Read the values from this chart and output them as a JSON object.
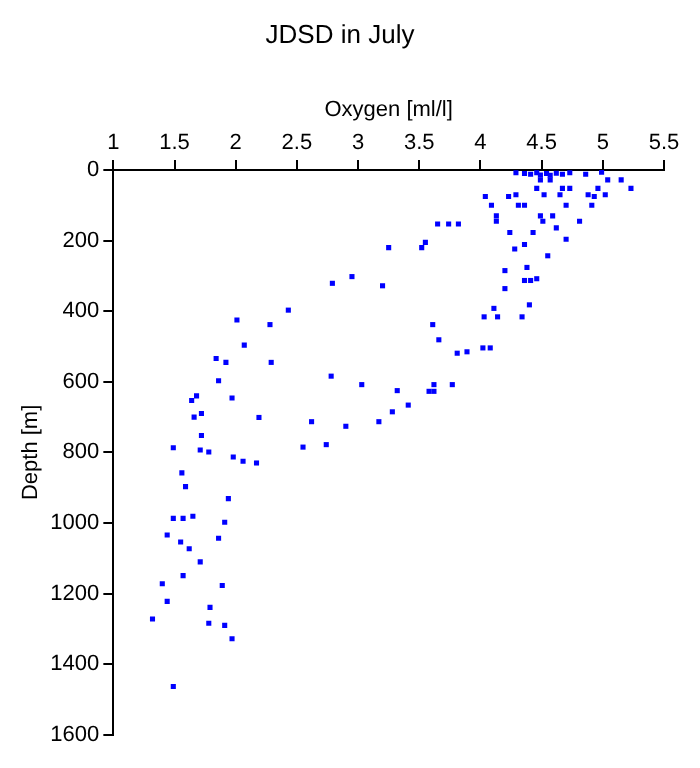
{
  "chart_data": {
    "type": "scatter",
    "title": "JDSD in July",
    "xlabel": "Oxygen [ml/l]",
    "ylabel": "Depth [m]",
    "xlim": [
      1,
      5.5
    ],
    "xticks": [
      1,
      1.5,
      2,
      2.5,
      3,
      3.5,
      4,
      4.5,
      5,
      5.5
    ],
    "ylim": [
      1600,
      0
    ],
    "yticks": [
      0,
      200,
      400,
      600,
      800,
      1000,
      1200,
      1400,
      1600
    ],
    "grid": false,
    "legend": false,
    "marker": "square",
    "series": [
      {
        "color": "#0000ff",
        "x": [
          4.29,
          4.36,
          4.41,
          4.46,
          4.49,
          4.54,
          4.57,
          4.62,
          4.67,
          4.73,
          4.86,
          4.99,
          5.04,
          5.15,
          4.57,
          4.49,
          5.23,
          4.96,
          4.73,
          4.67,
          4.46,
          4.04,
          4.23,
          4.29,
          4.52,
          4.65,
          4.88,
          5.02,
          4.93,
          4.09,
          4.31,
          4.36,
          4.7,
          4.91,
          4.13,
          4.49,
          4.59,
          4.13,
          4.51,
          4.81,
          3.65,
          3.74,
          3.82,
          4.62,
          4.24,
          4.43,
          4.7,
          4.36,
          3.55,
          3.25,
          3.52,
          4.28,
          4.55,
          4.38,
          4.2,
          2.95,
          4.46,
          4.36,
          4.41,
          2.79,
          3.2,
          4.2,
          4.4,
          4.11,
          2.43,
          4.03,
          4.14,
          4.34,
          2.01,
          2.28,
          3.61,
          3.66,
          2.07,
          4.08,
          4.02,
          3.89,
          3.81,
          1.84,
          1.92,
          2.29,
          2.78,
          1.86,
          3.03,
          3.62,
          3.77,
          3.32,
          3.58,
          3.62,
          1.68,
          1.97,
          1.64,
          3.41,
          3.28,
          1.72,
          1.66,
          2.19,
          2.62,
          3.17,
          2.9,
          1.72,
          2.74,
          2.55,
          1.49,
          1.71,
          1.78,
          1.98,
          2.06,
          2.17,
          1.56,
          1.59,
          1.94,
          1.65,
          1.49,
          1.57,
          1.91,
          1.44,
          1.86,
          1.55,
          1.62,
          1.71,
          1.57,
          1.4,
          1.89,
          1.44,
          1.79,
          1.32,
          1.78,
          1.91,
          1.97,
          1.49
        ],
        "values": [
          8,
          10,
          12,
          8,
          14,
          10,
          15,
          9,
          12,
          8,
          12,
          6,
          28,
          28,
          28,
          28,
          52,
          52,
          52,
          52,
          52,
          75,
          75,
          70,
          70,
          70,
          70,
          70,
          75,
          100,
          100,
          100,
          100,
          100,
          130,
          130,
          130,
          145,
          145,
          145,
          153,
          153,
          153,
          164,
          177,
          177,
          196,
          211,
          205,
          220,
          220,
          224,
          243,
          276,
          285,
          302,
          308,
          313,
          313,
          321,
          328,
          336,
          382,
          392,
          397,
          416,
          416,
          416,
          425,
          438,
          438,
          481,
          496,
          504,
          504,
          515,
          519,
          534,
          545,
          545,
          584,
          597,
          608,
          608,
          608,
          625,
          627,
          627,
          640,
          646,
          653,
          666,
          685,
          690,
          700,
          701,
          713,
          713,
          726,
          752,
          778,
          785,
          787,
          793,
          799,
          813,
          825,
          830,
          858,
          897,
          931,
          981,
          987,
          987,
          998,
          1034,
          1043,
          1054,
          1073,
          1110,
          1149,
          1172,
          1177,
          1222,
          1239,
          1272,
          1284,
          1290,
          1328,
          1463
        ]
      }
    ]
  }
}
